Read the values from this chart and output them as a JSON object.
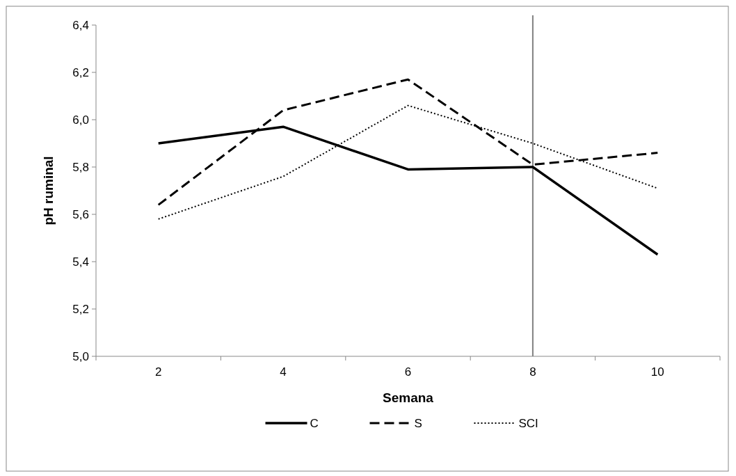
{
  "chart_data": {
    "type": "line",
    "xlabel": "Semana",
    "ylabel": "pH ruminal",
    "categories": [
      "2",
      "4",
      "6",
      "8",
      "10"
    ],
    "series": [
      {
        "name": "C",
        "color": "#000000",
        "line_style": "solid",
        "values": [
          5.9,
          5.97,
          5.79,
          5.8,
          5.43
        ]
      },
      {
        "name": "S",
        "color": "#000000",
        "line_style": "dashed",
        "values": [
          5.64,
          6.04,
          6.17,
          5.81,
          5.86
        ]
      },
      {
        "name": "SCI",
        "color": "#000000",
        "line_style": "dotted",
        "values": [
          5.58,
          5.76,
          6.06,
          5.9,
          5.71
        ]
      }
    ],
    "ylim": [
      5.0,
      6.4
    ],
    "yticks": [
      {
        "value": 5.0,
        "label": "5,0"
      },
      {
        "value": 5.2,
        "label": "5,2"
      },
      {
        "value": 5.4,
        "label": "5,4"
      },
      {
        "value": 5.6,
        "label": "5,6"
      },
      {
        "value": 5.8,
        "label": "5,8"
      },
      {
        "value": 6.0,
        "label": "6,0"
      },
      {
        "value": 6.2,
        "label": "6,2"
      },
      {
        "value": 6.4,
        "label": "6,4"
      }
    ],
    "ref_lines": [
      {
        "axis": "x",
        "value": "8",
        "color": "#808080"
      }
    ],
    "legend": "bottom",
    "marker": "none",
    "grid": false
  }
}
